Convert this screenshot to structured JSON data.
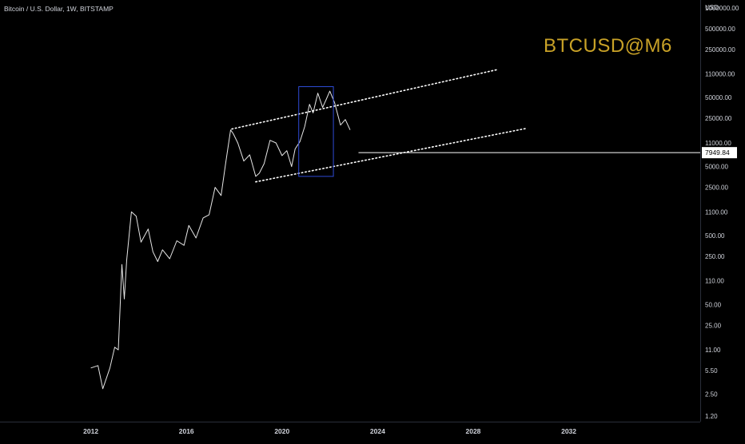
{
  "header": {
    "symbol_title": "Bitcoin / U.S. Dollar, 1W, BITSTAMP"
  },
  "watermark": {
    "text": "BTCUSD@M6",
    "color": "#c9a227"
  },
  "price_axis": {
    "currency": "USD",
    "labels": [
      "1000000.00",
      "500000.00",
      "250000.00",
      "110000.00",
      "50000.00",
      "25000.00",
      "11000.00",
      "5000.00",
      "2500.00",
      "1100.00",
      "500.00",
      "250.00",
      "110.00",
      "50.00",
      "25.00",
      "11.00",
      "5.50",
      "2.50",
      "1.20"
    ],
    "current_price_label": "7949.84"
  },
  "time_axis": {
    "labels": [
      "2012",
      "2016",
      "2020",
      "2024",
      "2028",
      "2032"
    ]
  },
  "colors": {
    "background": "#000000",
    "price_line": "#e6e6e6",
    "channel": "#ffffff",
    "box": "#2e4bd6",
    "horizontal_line": "#ffffff",
    "price_tag_bg": "#ffffff",
    "price_tag_text": "#000000"
  },
  "chart_data": {
    "type": "line",
    "title": "Bitcoin / U.S. Dollar, 1W, BITSTAMP",
    "y_scale": "log",
    "ylim": [
      1.0,
      1300000
    ],
    "xlim": [
      2008.2,
      2037.5
    ],
    "x_ticks": [
      2012,
      2016,
      2020,
      2024,
      2028,
      2032
    ],
    "y_ticks": [
      1000000,
      500000,
      250000,
      110000,
      50000,
      25000,
      11000,
      5000,
      2500,
      1100,
      500,
      250,
      110,
      50,
      25,
      11,
      5.5,
      2.5,
      1.2
    ],
    "series": [
      {
        "x": [
          2012.0,
          2012.3,
          2012.5,
          2012.8,
          2013.0,
          2013.15,
          2013.3,
          2013.4,
          2013.5,
          2013.7,
          2013.9,
          2014.1,
          2014.4,
          2014.6,
          2014.8,
          2015.0,
          2015.3,
          2015.6,
          2015.9,
          2016.1,
          2016.4,
          2016.7,
          2016.95,
          2017.2,
          2017.45,
          2017.65,
          2017.85,
          2017.96,
          2018.15,
          2018.4,
          2018.65,
          2018.9,
          2019.05,
          2019.25,
          2019.5,
          2019.75,
          2020.0,
          2020.2,
          2020.4,
          2020.55,
          2020.75,
          2020.95,
          2021.15,
          2021.3,
          2021.5,
          2021.7,
          2021.85,
          2022.0,
          2022.2,
          2022.45,
          2022.65,
          2022.85
        ],
        "y": [
          6,
          6.5,
          3.0,
          6,
          12,
          11,
          190,
          60,
          220,
          1100,
          950,
          400,
          620,
          290,
          210,
          310,
          230,
          420,
          360,
          700,
          460,
          900,
          1000,
          2500,
          1900,
          5800,
          17000,
          15000,
          11000,
          6000,
          7400,
          3600,
          4000,
          5500,
          12000,
          11000,
          7200,
          8500,
          5000,
          9000,
          11500,
          19000,
          40000,
          30000,
          58000,
          36000,
          47000,
          62000,
          42000,
          20000,
          24000,
          17000
        ]
      }
    ],
    "annotations": {
      "channel_upper": {
        "x": [
          2017.9,
          2029.0
        ],
        "y": [
          17500,
          127000
        ]
      },
      "channel_lower": {
        "x": [
          2018.9,
          2030.2
        ],
        "y": [
          3000,
          17800
        ]
      },
      "box": {
        "x": [
          2020.7,
          2022.15
        ],
        "y": [
          3600,
          72000
        ]
      },
      "horizontal_line": {
        "x_start": 2023.2,
        "y": 7949.84
      }
    }
  }
}
